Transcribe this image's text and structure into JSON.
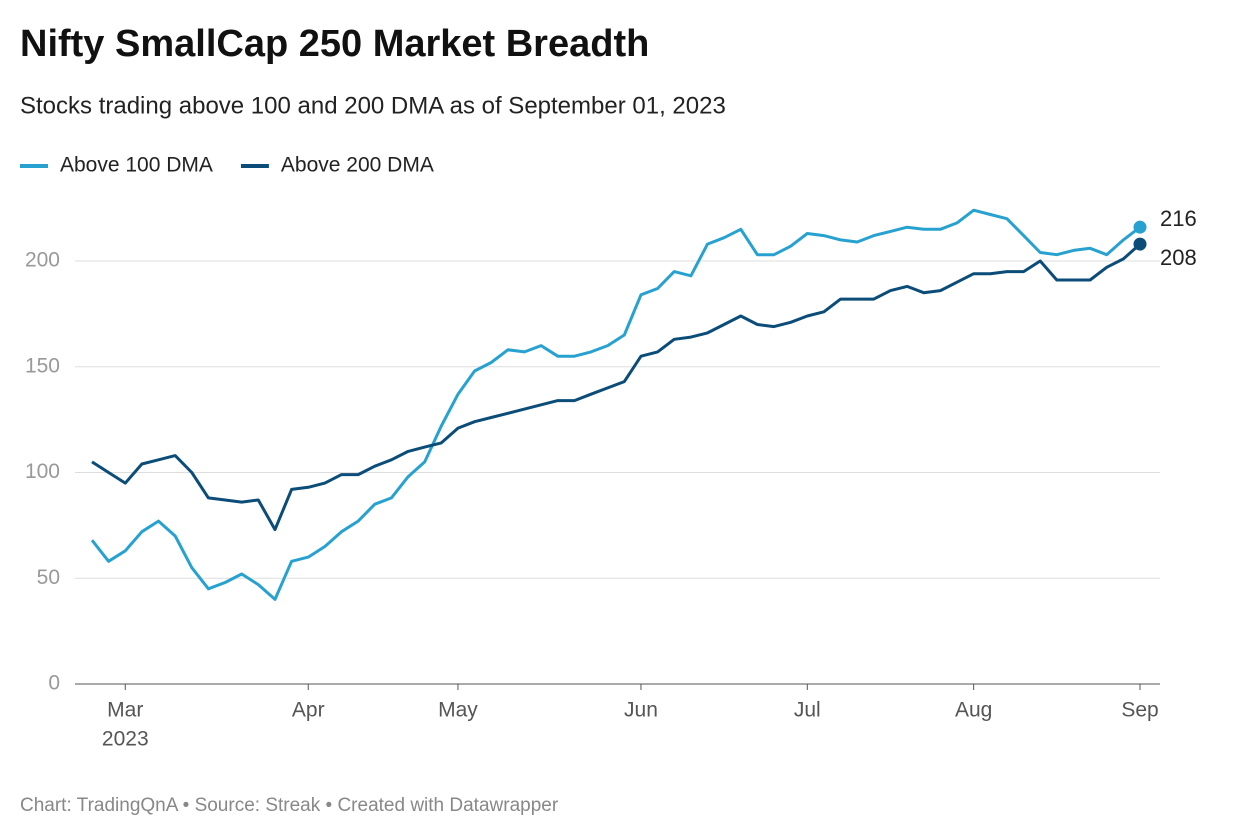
{
  "chart_data": {
    "type": "line",
    "title": "Nifty SmallCap 250 Market Breadth",
    "subtitle": "Stocks trading above 100 and 200 DMA as of September 01, 2023",
    "source": "Chart: TradingQnA • Source: Streak • Created with Datawrapper",
    "year_label": "2023",
    "categories": [
      null,
      null,
      "Mar",
      null,
      null,
      null,
      null,
      null,
      null,
      null,
      null,
      null,
      null,
      "Apr",
      null,
      null,
      null,
      null,
      null,
      null,
      null,
      null,
      "May",
      null,
      null,
      null,
      null,
      null,
      null,
      null,
      null,
      null,
      null,
      "Jun",
      null,
      null,
      null,
      null,
      null,
      null,
      null,
      null,
      null,
      "Jul",
      null,
      null,
      null,
      null,
      null,
      null,
      null,
      null,
      null,
      "Aug",
      null,
      null,
      null,
      null,
      null,
      null,
      null,
      null,
      null,
      "Sep"
    ],
    "series": [
      {
        "name": "Above 100 DMA",
        "color": "#27a2d0",
        "values": [
          68,
          58,
          63,
          72,
          77,
          70,
          55,
          45,
          48,
          52,
          47,
          40,
          58,
          60,
          65,
          72,
          77,
          85,
          88,
          98,
          105,
          122,
          137,
          148,
          152,
          158,
          157,
          160,
          155,
          155,
          157,
          160,
          165,
          184,
          187,
          195,
          193,
          208,
          211,
          215,
          203,
          203,
          207,
          213,
          212,
          210,
          209,
          212,
          214,
          216,
          215,
          215,
          218,
          224,
          222,
          220,
          212,
          204,
          203,
          205,
          206,
          203,
          210,
          216
        ]
      },
      {
        "name": "Above 200 DMA",
        "color": "#0b4d78",
        "values": [
          105,
          100,
          95,
          104,
          106,
          108,
          100,
          88,
          87,
          86,
          87,
          73,
          92,
          93,
          95,
          99,
          99,
          103,
          106,
          110,
          112,
          114,
          121,
          124,
          126,
          128,
          130,
          132,
          134,
          134,
          137,
          140,
          143,
          155,
          157,
          163,
          164,
          166,
          170,
          174,
          170,
          169,
          171,
          174,
          176,
          182,
          182,
          182,
          186,
          188,
          185,
          186,
          190,
          194,
          194,
          195,
          195,
          200,
          191,
          191,
          191,
          197,
          201,
          208
        ]
      }
    ],
    "ylim": [
      0,
      230
    ],
    "yticks": [
      0,
      50,
      100,
      150,
      200
    ],
    "grid": true,
    "legend": "top-left"
  }
}
